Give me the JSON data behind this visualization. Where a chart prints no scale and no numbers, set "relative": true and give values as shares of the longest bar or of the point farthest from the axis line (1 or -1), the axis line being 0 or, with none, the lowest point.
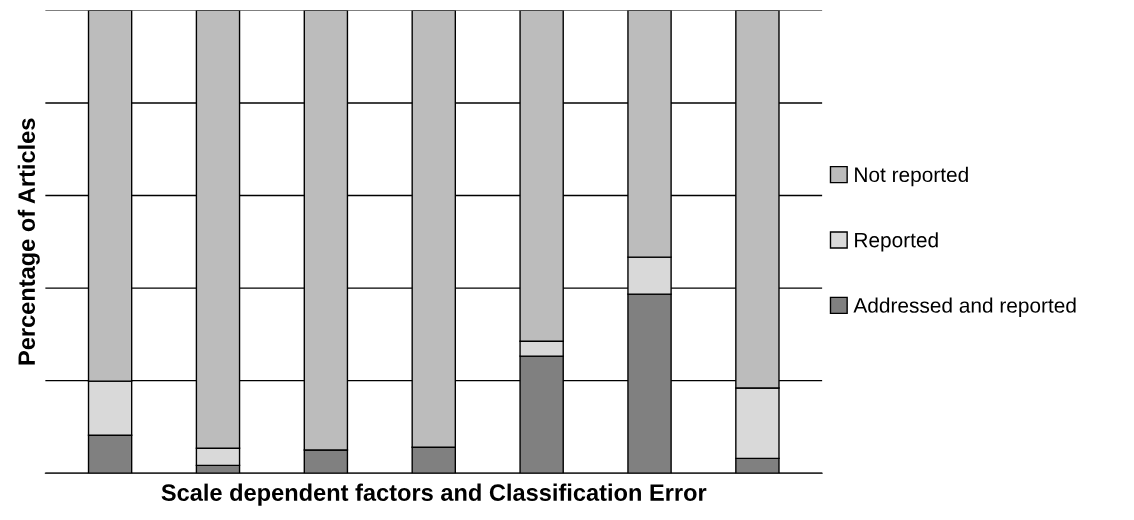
{
  "chart_data": {
    "type": "bar",
    "stacked": true,
    "relative": true,
    "xlabel": "Scale dependent factors and Classification Error",
    "ylabel": "Percentage of Articles",
    "categories": [
      null,
      null,
      null,
      null,
      null,
      null,
      null
    ],
    "series": [
      {
        "name": "Addressed and reported",
        "color": "#808080",
        "values": [
          0.082,
          0.017,
          0.05,
          0.056,
          0.253,
          0.387,
          0.032
        ]
      },
      {
        "name": "Reported",
        "color": "#d9d9d9",
        "values": [
          0.117,
          0.037,
          0,
          0,
          0.032,
          0.08,
          0.152
        ]
      },
      {
        "name": "Not reported",
        "color": "#bcbcbc",
        "values": [
          0.801,
          0.946,
          0.95,
          0.944,
          0.715,
          0.533,
          0.816
        ]
      }
    ],
    "grid": "y",
    "legend": "right"
  }
}
